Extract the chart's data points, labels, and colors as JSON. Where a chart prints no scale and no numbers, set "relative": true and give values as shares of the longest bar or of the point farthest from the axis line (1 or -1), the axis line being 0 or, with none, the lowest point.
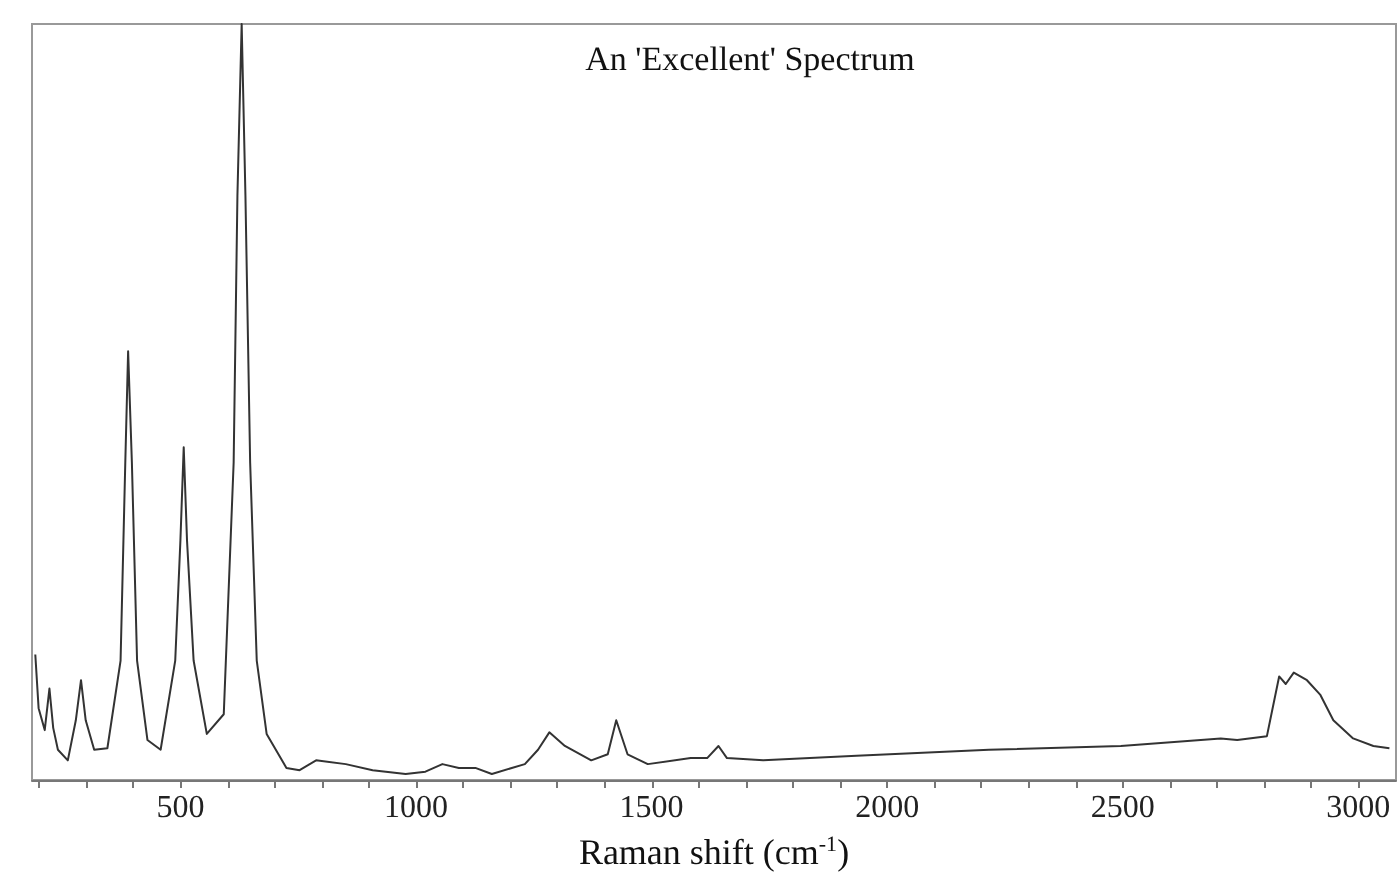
{
  "chart_data": {
    "type": "line",
    "relative": true,
    "title": "An 'Excellent' Spectrum",
    "xlabel": "Raman shift (cm$^{-1}$)",
    "xlim": [
      185,
      3080
    ],
    "xticks": [
      {
        "value": 200,
        "label": null
      },
      {
        "value": 300,
        "label": null
      },
      {
        "value": 400,
        "label": null
      },
      500,
      {
        "value": 600,
        "label": null
      },
      {
        "value": 700,
        "label": null
      },
      {
        "value": 800,
        "label": null
      },
      {
        "value": 900,
        "label": null
      },
      1000,
      {
        "value": 1100,
        "label": null
      },
      {
        "value": 1200,
        "label": null
      },
      {
        "value": 1300,
        "label": null
      },
      {
        "value": 1400,
        "label": null
      },
      1500,
      {
        "value": 1600,
        "label": null
      },
      {
        "value": 1700,
        "label": null
      },
      {
        "value": 1800,
        "label": null
      },
      {
        "value": 1900,
        "label": null
      },
      2000,
      {
        "value": 2100,
        "label": null
      },
      {
        "value": 2200,
        "label": null
      },
      {
        "value": 2300,
        "label": null
      },
      {
        "value": 2400,
        "label": null
      },
      2500,
      {
        "value": 2600,
        "label": null
      },
      {
        "value": 2700,
        "label": null
      },
      {
        "value": 2800,
        "label": null
      },
      {
        "value": 2900,
        "label": null
      },
      3000
    ],
    "tick_labels": "x",
    "grid": false,
    "marker": "none",
    "line_style": "solid",
    "series": [
      {
        "color": "#333333",
        "x": [
          192,
          199,
          212,
          222,
          230,
          240,
          261,
          278,
          289,
          299,
          317,
          345,
          373,
          383,
          389,
          397,
          408,
          430,
          458,
          489,
          500,
          507,
          514,
          528,
          556,
          592,
          613,
          621,
          630,
          638,
          648,
          662,
          683,
          725,
          753,
          788,
          851,
          908,
          978,
          1020,
          1056,
          1091,
          1126,
          1161,
          1231,
          1259,
          1283,
          1316,
          1372,
          1407,
          1425,
          1449,
          1492,
          1583,
          1618,
          1642,
          1660,
          1737,
          1935,
          2216,
          2496,
          2708,
          2743,
          2806,
          2832,
          2846,
          2863,
          2891,
          2919,
          2947,
          2989,
          3032,
          3066
        ],
        "values": [
          0.166,
          0.095,
          0.066,
          0.121,
          0.069,
          0.04,
          0.026,
          0.079,
          0.132,
          0.079,
          0.04,
          0.042,
          0.158,
          0.42,
          0.567,
          0.42,
          0.158,
          0.053,
          0.04,
          0.158,
          0.317,
          0.44,
          0.317,
          0.158,
          0.061,
          0.087,
          0.42,
          0.773,
          1,
          0.773,
          0.42,
          0.158,
          0.061,
          0.016,
          0.013,
          0.026,
          0.021,
          0.013,
          0.008,
          0.011,
          0.021,
          0.016,
          0.016,
          0.008,
          0.021,
          0.04,
          0.063,
          0.045,
          0.026,
          0.034,
          0.079,
          0.034,
          0.021,
          0.029,
          0.029,
          0.045,
          0.029,
          0.026,
          0.032,
          0.04,
          0.045,
          0.055,
          0.053,
          0.058,
          0.137,
          0.127,
          0.142,
          0.132,
          0.113,
          0.079,
          0.055,
          0.045,
          0.042
        ]
      }
    ]
  }
}
